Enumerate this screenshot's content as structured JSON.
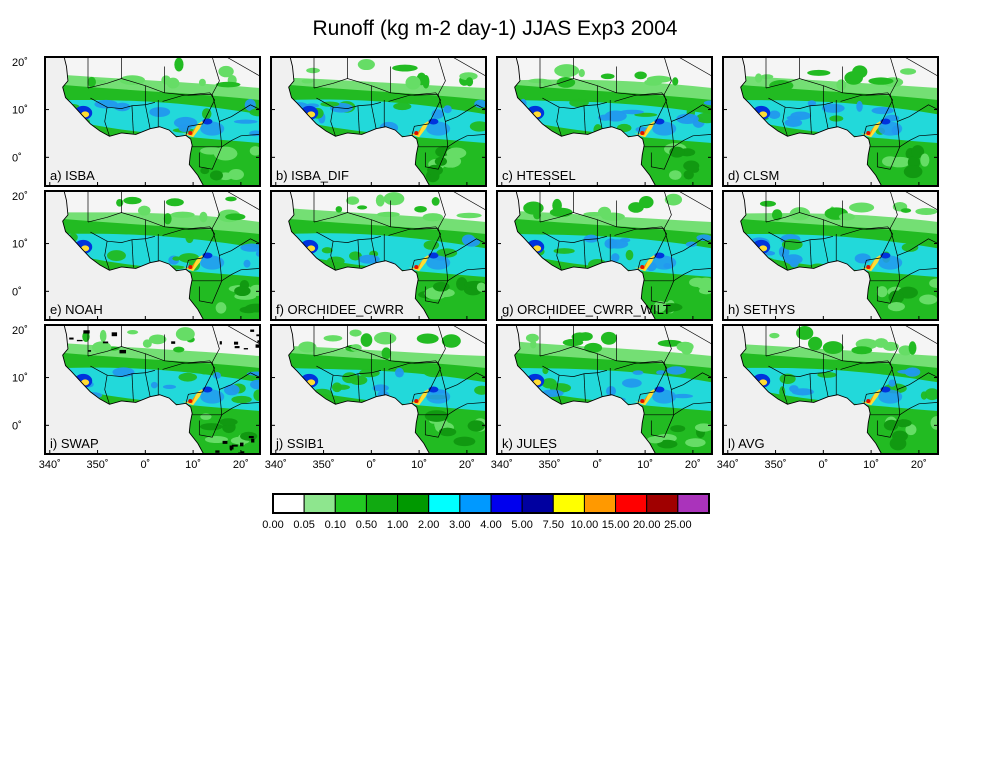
{
  "figure": {
    "title": "Runoff (kg m-2 day-1) JJAS Exp3 2004"
  },
  "axes": {
    "lon_ticks": [
      "340˚",
      "350˚",
      "0˚",
      "10˚",
      "20˚"
    ],
    "lat_ticks": [
      "20˚",
      "10˚",
      "0˚"
    ]
  },
  "panels": [
    {
      "label": "a) ISBA"
    },
    {
      "label": "b) ISBA_DIF"
    },
    {
      "label": "c) HTESSEL"
    },
    {
      "label": "d) CLSM"
    },
    {
      "label": "e) NOAH"
    },
    {
      "label": "f) ORCHIDEE_CWRR"
    },
    {
      "label": "g) ORCHIDEE_CWRR_WILT"
    },
    {
      "label": "h) SETHYS"
    },
    {
      "label": "i) SWAP"
    },
    {
      "label": "j) SSIB1"
    },
    {
      "label": "k) JULES"
    },
    {
      "label": "l) AVG"
    }
  ],
  "colorbar": {
    "levels": [
      "0.00",
      "0.05",
      "0.10",
      "0.50",
      "1.00",
      "2.00",
      "3.00",
      "4.00",
      "5.00",
      "7.50",
      "10.00",
      "15.00",
      "20.00",
      "25.00"
    ],
    "colors": [
      "#ffffff",
      "#8ee68e",
      "#22c822",
      "#11aa11",
      "#009900",
      "#00ffff",
      "#0099ff",
      "#0000ee",
      "#0000a0",
      "#ffff00",
      "#ff9900",
      "#ff0000",
      "#a00000",
      "#aa33bb"
    ]
  },
  "map_colors": {
    "ocean": "#f0f0f0",
    "green_light": "#66dd66",
    "green_mid": "#22bb22",
    "green_dark": "#119911",
    "cyan": "#22ddee",
    "blue_light": "#2299ee",
    "blue": "#0033dd",
    "yellow": "#ffdd33",
    "orange": "#ff8800",
    "red": "#dd1100"
  }
}
